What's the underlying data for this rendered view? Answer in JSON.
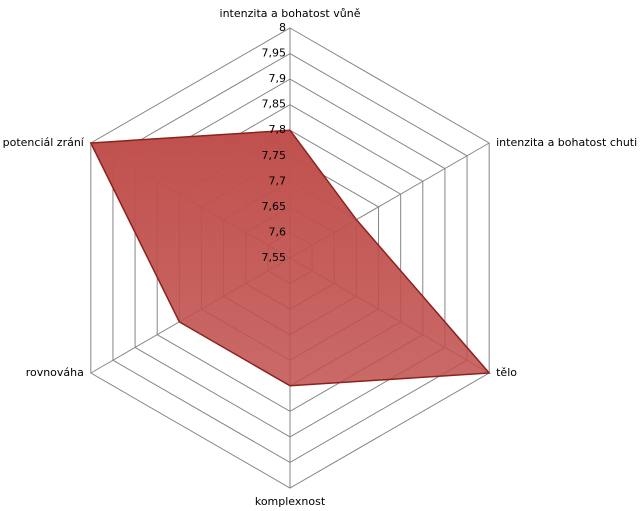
{
  "chart_data": {
    "type": "radar",
    "categories": [
      "intenzita a bohatost vůně",
      "intenzita a bohatost chuti",
      "tělo",
      "komplexnost",
      "rovnováha",
      "potenciál zrání"
    ],
    "values": [
      7.8,
      7.7,
      8,
      7.8,
      7.8,
      8
    ],
    "color": "#c0504d",
    "ylim": [
      7.55,
      8
    ],
    "yticks": [
      {
        "value": 7.55,
        "label": "7,55"
      },
      {
        "value": 7.6,
        "label": "7,6"
      },
      {
        "value": 7.65,
        "label": "7,65"
      },
      {
        "value": 7.7,
        "label": "7,7"
      },
      {
        "value": 7.75,
        "label": "7,75"
      },
      {
        "value": 7.8,
        "label": "7,8"
      },
      {
        "value": 7.85,
        "label": "7,85"
      },
      {
        "value": 7.9,
        "label": "7,9"
      },
      {
        "value": 7.95,
        "label": "7,95"
      },
      8
    ],
    "grid": true
  }
}
